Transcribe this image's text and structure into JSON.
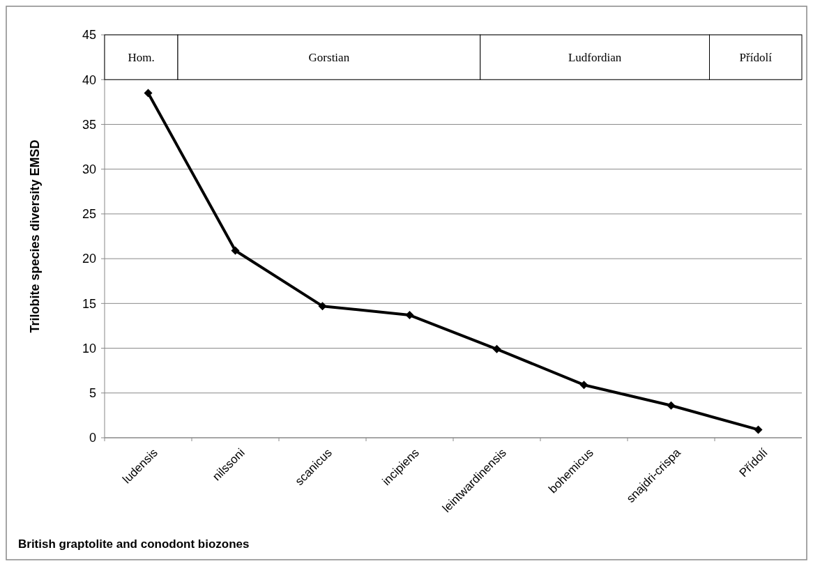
{
  "chart_data": {
    "type": "line",
    "ylabel": "Trilobite species diversity EMSD",
    "xlabel": "British graptolite and conodont biozones",
    "categories": [
      "ludensis",
      "nilssoni",
      "scanicus",
      "incipiens",
      "leintwardinensis",
      "bohemicus",
      "snajdri-crispa",
      "Přídolí"
    ],
    "series": [
      {
        "color": "#000000",
        "values": [
          38.5,
          20.9,
          14.7,
          13.7,
          9.9,
          5.9,
          3.6,
          0.9
        ]
      }
    ],
    "ylim": [
      0,
      45
    ],
    "yticks": [
      0,
      5,
      10,
      15,
      20,
      25,
      30,
      35,
      40,
      45
    ],
    "grid": "y",
    "marker": "diamond",
    "line_style": "solid",
    "annotations": [
      "Hom.",
      "Gorstian",
      "Ludfordian",
      "Přídolí"
    ]
  }
}
